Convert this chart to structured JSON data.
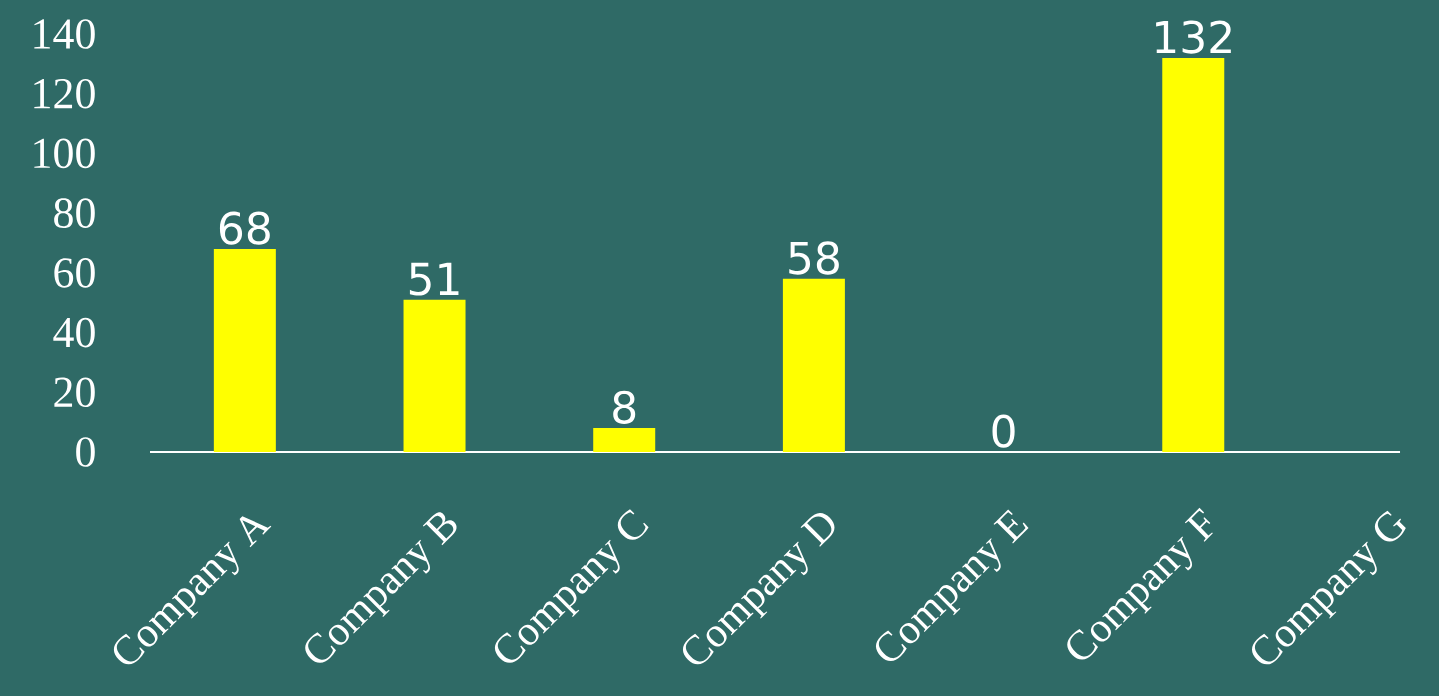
{
  "chart_data": {
    "type": "bar",
    "categories": [
      "Company A",
      "Company B",
      "Company C",
      "Company D",
      "Company E",
      "Company F",
      "Company G"
    ],
    "values": [
      68,
      51,
      8,
      58,
      0,
      132,
      null
    ],
    "color": "#ffff00",
    "ylim": [
      0,
      140
    ],
    "yticks": [
      0,
      20,
      40,
      60,
      80,
      100,
      120,
      140
    ],
    "data_labels": true
  }
}
